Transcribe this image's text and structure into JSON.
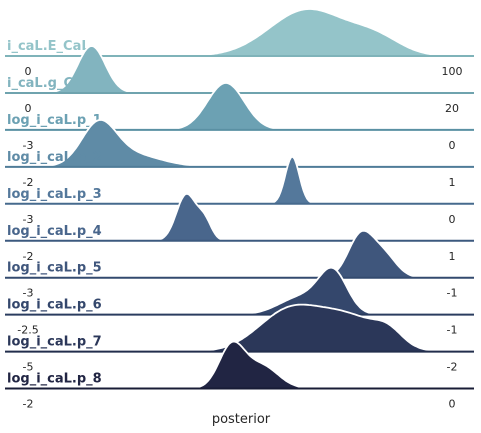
{
  "chart_data": {
    "type": "ridgeline",
    "xlabel": "posterior",
    "legend": "none",
    "grid": false,
    "rows": [
      {
        "name": "i_caL.E_CaL",
        "color": "#94c4c9",
        "line": "#7fb3b9",
        "x_range": [
          0,
          100
        ],
        "x_tick_labels": [
          "0",
          "100"
        ],
        "components": [
          {
            "mu": 66,
            "sigma": 9,
            "w": 1.0
          },
          {
            "mu": 82,
            "sigma": 6,
            "w": 0.35
          }
        ]
      },
      {
        "name": "i_caL.g_CaL",
        "color": "#82b4bf",
        "line": "#6fa3ae",
        "x_range": [
          0,
          20
        ],
        "x_tick_labels": [
          "0",
          "20"
        ],
        "components": [
          {
            "mu": 3.0,
            "sigma": 0.65,
            "w": 1.0
          }
        ]
      },
      {
        "name": "log_i_caL.p_1",
        "color": "#6ca1b3",
        "line": "#5a90a3",
        "x_range": [
          -3,
          0
        ],
        "x_tick_labels": [
          "-3",
          "0"
        ],
        "components": [
          {
            "mu": -1.6,
            "sigma": 0.13,
            "w": 1.0
          }
        ]
      },
      {
        "name": "log_i_caL.p_2",
        "color": "#5f8ba6",
        "line": "#4f7c98",
        "x_range": [
          -2,
          1
        ],
        "x_tick_labels": [
          "-2",
          "1"
        ],
        "components": [
          {
            "mu": -1.5,
            "sigma": 0.12,
            "w": 1.0
          },
          {
            "mu": -1.3,
            "sigma": 0.22,
            "w": 0.35
          }
        ]
      },
      {
        "name": "log_i_caL.p_3",
        "color": "#54789b",
        "line": "#466a8d",
        "x_range": [
          -3,
          0
        ],
        "x_tick_labels": [
          "-3",
          "0"
        ],
        "components": [
          {
            "mu": -1.13,
            "sigma": 0.05,
            "w": 1.0
          }
        ]
      },
      {
        "name": "log_i_caL.p_4",
        "color": "#49668c",
        "line": "#3c597f",
        "x_range": [
          -2,
          1
        ],
        "x_tick_labels": [
          "-2",
          "1"
        ],
        "components": [
          {
            "mu": -0.88,
            "sigma": 0.07,
            "w": 1.0
          },
          {
            "mu": -0.75,
            "sigma": 0.05,
            "w": 0.4
          }
        ]
      },
      {
        "name": "log_i_caL.p_5",
        "color": "#3f567c",
        "line": "#334a6f",
        "x_range": [
          -3,
          -1
        ],
        "x_tick_labels": [
          "-3",
          "-1"
        ],
        "components": [
          {
            "mu": -1.43,
            "sigma": 0.06,
            "w": 1.0
          },
          {
            "mu": -1.32,
            "sigma": 0.06,
            "w": 0.5
          }
        ]
      },
      {
        "name": "log_i_caL.p_6",
        "color": "#34476c",
        "line": "#2a3c5f",
        "x_range": [
          -2.5,
          -1
        ],
        "x_tick_labels": [
          "-2.5",
          "-1"
        ],
        "components": [
          {
            "mu": -1.42,
            "sigma": 0.05,
            "w": 1.0
          },
          {
            "mu": -1.53,
            "sigma": 0.08,
            "w": 0.45
          }
        ]
      },
      {
        "name": "log_i_caL.p_7",
        "color": "#2b3759",
        "line": "#222e4c",
        "x_range": [
          -5,
          -2
        ],
        "x_tick_labels": [
          "-5",
          "-2"
        ],
        "components": [
          {
            "mu": -3.15,
            "sigma": 0.22,
            "w": 1.0
          },
          {
            "mu": -2.72,
            "sigma": 0.22,
            "w": 0.8
          },
          {
            "mu": -2.45,
            "sigma": 0.1,
            "w": 0.3
          }
        ]
      },
      {
        "name": "log_i_caL.p_8",
        "color": "#212543",
        "line": "#181c36",
        "x_range": [
          -2,
          0
        ],
        "x_tick_labels": [
          "-2",
          "0"
        ],
        "components": [
          {
            "mu": -1.04,
            "sigma": 0.06,
            "w": 1.0
          },
          {
            "mu": -0.9,
            "sigma": 0.08,
            "w": 0.55
          }
        ]
      }
    ]
  }
}
